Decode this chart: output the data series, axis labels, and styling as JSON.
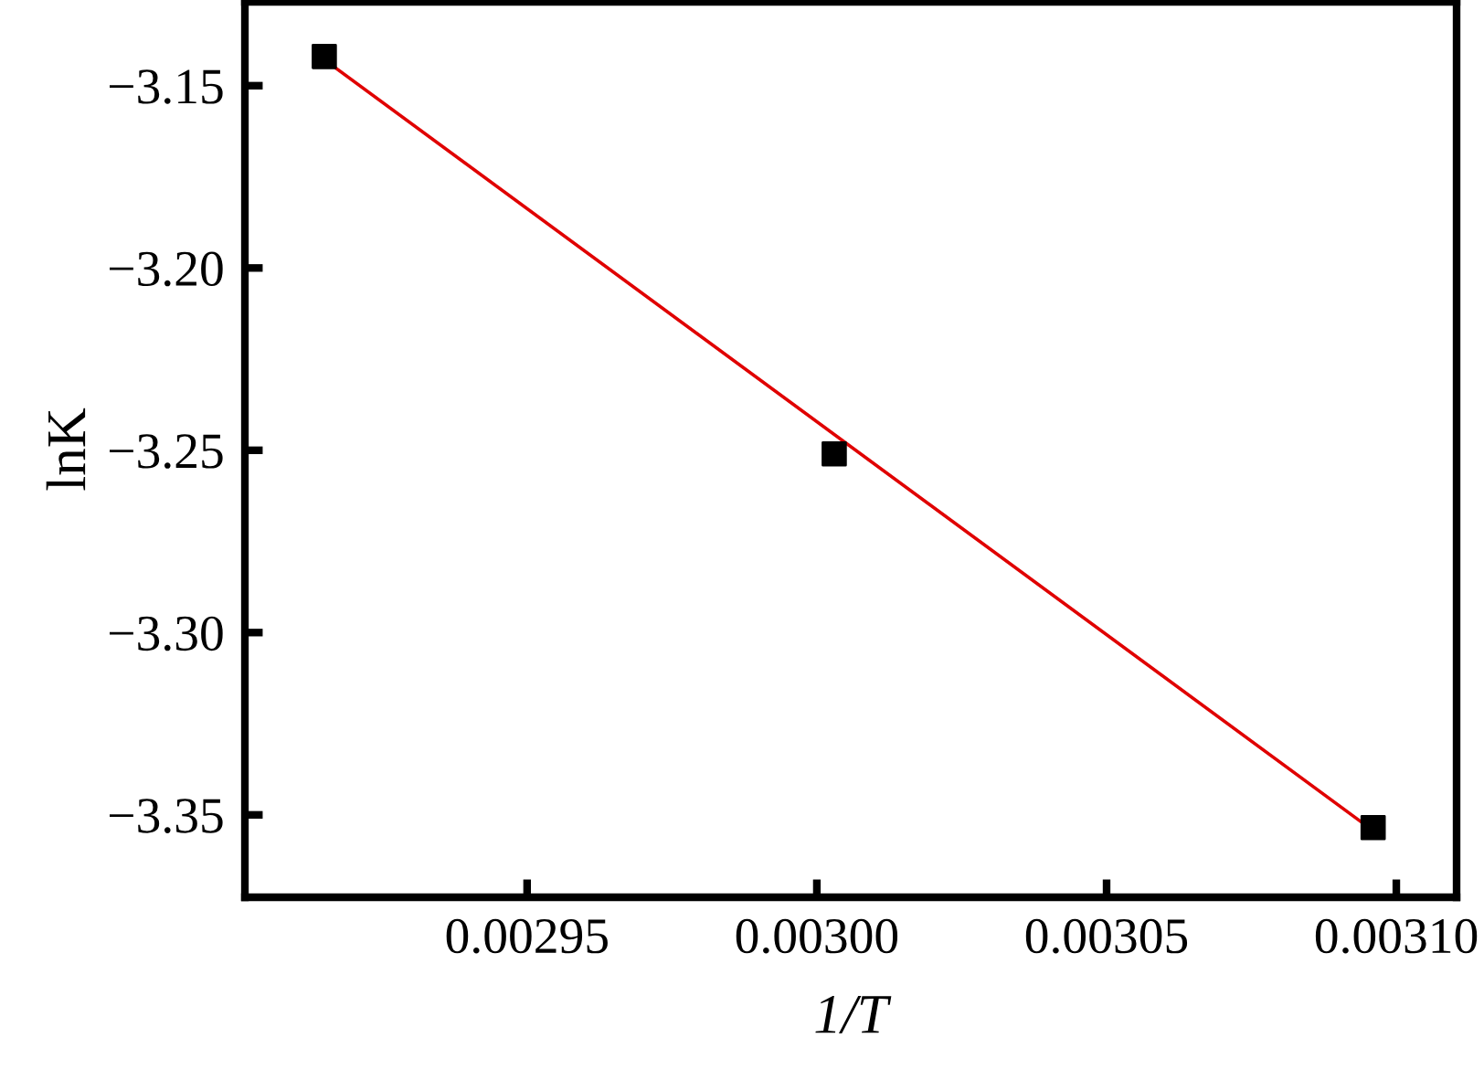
{
  "chart_data": {
    "type": "scatter",
    "xlabel": "1/T",
    "ylabel": "lnK",
    "series": [
      {
        "color": "#000000",
        "marker": "square",
        "x": [
          0.002915,
          0.003003,
          0.003096
        ],
        "values": [
          -3.142,
          -3.251,
          -3.3535
        ]
      },
      {
        "type": "line",
        "color": "#e00000",
        "marker": "none",
        "line_style": "solid",
        "x": [
          0.002916,
          0.003094
        ],
        "values": [
          -3.144,
          -3.352
        ]
      }
    ],
    "xlim": [
      0.0029013,
      0.0031104
    ],
    "xticks": [
      {
        "value": 0.00295,
        "label": "0.00295"
      },
      {
        "value": 0.003,
        "label": "0.00300"
      },
      {
        "value": 0.00305,
        "label": "0.00305"
      },
      {
        "value": 0.0031,
        "label": "0.00310"
      }
    ],
    "ylim": [
      -3.3726,
      -3.127
    ],
    "yticks": [
      {
        "value": -3.15,
        "label": "−3.15"
      },
      {
        "value": -3.2,
        "label": "−3.20"
      },
      {
        "value": -3.25,
        "label": "−3.25"
      },
      {
        "value": -3.3,
        "label": "−3.30"
      },
      {
        "value": -3.35,
        "label": "−3.35"
      }
    ],
    "grid": false,
    "legend": false
  }
}
